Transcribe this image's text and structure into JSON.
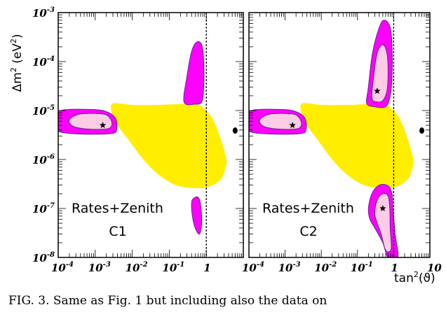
{
  "caption": "FIG. 3. Same as Fig. 1 but including also the data on",
  "chart_data": {
    "type": "contour",
    "x_scale": "log",
    "y_scale": "log",
    "xlim": [
      0.0001,
      10
    ],
    "ylim": [
      1e-08,
      0.001
    ],
    "xlabel": "tan²(ϑ)",
    "ylabel": "Δm² (eV²)",
    "x_tick_labels": [
      {
        "base": "10",
        "exp": "-4",
        "value": 0.0001
      },
      {
        "base": "10",
        "exp": "-3",
        "value": 0.001
      },
      {
        "base": "10",
        "exp": "-2",
        "value": 0.01
      },
      {
        "base": "10",
        "exp": "-1",
        "value": 0.1
      },
      {
        "base": "1",
        "exp": "",
        "value": 1
      },
      {
        "base": "10",
        "exp": "",
        "value": 10
      }
    ],
    "y_tick_labels": [
      {
        "base": "10",
        "exp": "-3",
        "value": 0.001
      },
      {
        "base": "10",
        "exp": "-4",
        "value": 0.0001
      },
      {
        "base": "10",
        "exp": "-5",
        "value": 1e-05
      },
      {
        "base": "10",
        "exp": "-6",
        "value": 1e-06
      },
      {
        "base": "10",
        "exp": "-7",
        "value": 1e-07
      },
      {
        "base": "10",
        "exp": "-8",
        "value": 1e-08
      }
    ],
    "colors": {
      "outer_region": "#ff00ff",
      "inner_region": "#ffcce6",
      "excluded_region": "#ffee00",
      "edge": "#5a2a8a"
    },
    "reference_line_x": 1,
    "panels": [
      {
        "label_line1": "Rates+Zenith",
        "label_line2": "C1",
        "best_fit": [
          {
            "x": 0.0016,
            "y": 5e-06
          }
        ],
        "dot": {
          "x": 6,
          "y": 3.9e-06
        },
        "excluded_region": [
          [
            0.003,
            1.4e-05
          ],
          [
            0.01,
            1.3e-05
          ],
          [
            0.05,
            1.3e-05
          ],
          [
            0.2,
            1.35e-05
          ],
          [
            0.6,
            1.3e-05
          ],
          [
            1,
            1e-05
          ],
          [
            1.6,
            6e-06
          ],
          [
            2.5,
            2.5e-06
          ],
          [
            3.3,
            1.2e-06
          ],
          [
            3.5,
            8e-07
          ],
          [
            2.5,
            4e-07
          ],
          [
            1.2,
            2.8e-07
          ],
          [
            0.5,
            2.6e-07
          ],
          [
            0.15,
            3e-07
          ],
          [
            0.05,
            5e-07
          ],
          [
            0.02,
            1e-06
          ],
          [
            0.008,
            2.5e-06
          ],
          [
            0.004,
            5e-06
          ],
          [
            0.0028,
            9e-06
          ]
        ],
        "outer_regions": [
          [
            [
              9e-05,
              6e-06
            ],
            [
              0.00012,
              1e-05
            ],
            [
              0.0008,
              1.05e-05
            ],
            [
              0.002,
              9.5e-06
            ],
            [
              0.0035,
              7e-06
            ],
            [
              0.0038,
              4.2e-06
            ],
            [
              0.0028,
              3.4e-06
            ],
            [
              0.0005,
              3.3e-06
            ],
            [
              0.00012,
              3.6e-06
            ],
            [
              9e-05,
              4.5e-06
            ]
          ],
          [
            [
              0.25,
              1.5e-05
            ],
            [
              0.3,
              5e-05
            ],
            [
              0.4,
              0.00016
            ],
            [
              0.55,
              0.00025
            ],
            [
              0.75,
              0.00022
            ],
            [
              0.85,
              0.0001
            ],
            [
              0.85,
              3e-05
            ],
            [
              0.75,
              1.5e-05
            ],
            [
              0.5,
              1.35e-05
            ]
          ],
          [
            [
              0.4,
              1.3e-07
            ],
            [
              0.45,
              1.6e-07
            ],
            [
              0.6,
              1.7e-07
            ],
            [
              0.7,
              1.2e-07
            ],
            [
              0.75,
              5e-08
            ],
            [
              0.65,
              3e-08
            ],
            [
              0.5,
              4e-08
            ],
            [
              0.42,
              7e-08
            ]
          ]
        ],
        "inner_regions": [
          [
            [
              0.0002,
              6.5e-06
            ],
            [
              0.0004,
              8.5e-06
            ],
            [
              0.0016,
              8.5e-06
            ],
            [
              0.0025,
              7e-06
            ],
            [
              0.0028,
              5e-06
            ],
            [
              0.002,
              4.2e-06
            ],
            [
              0.0006,
              4.2e-06
            ],
            [
              0.00025,
              4.8e-06
            ]
          ]
        ]
      },
      {
        "label_line1": "Rates+Zenith",
        "label_line2": "C2",
        "best_fit": [
          {
            "x": 0.0016,
            "y": 5e-06
          },
          {
            "x": 0.35,
            "y": 2.5e-05
          },
          {
            "x": 0.5,
            "y": 1e-07
          }
        ],
        "dot": {
          "x": 6,
          "y": 3.9e-06
        },
        "excluded_region": [
          [
            0.003,
            1.4e-05
          ],
          [
            0.01,
            1.3e-05
          ],
          [
            0.05,
            1.3e-05
          ],
          [
            0.2,
            1.35e-05
          ],
          [
            0.6,
            1.3e-05
          ],
          [
            1,
            1e-05
          ],
          [
            1.6,
            6e-06
          ],
          [
            2.5,
            2.5e-06
          ],
          [
            3.3,
            1.2e-06
          ],
          [
            3.5,
            8e-07
          ],
          [
            2.5,
            4e-07
          ],
          [
            1.2,
            2.8e-07
          ],
          [
            0.5,
            2.6e-07
          ],
          [
            0.15,
            3e-07
          ],
          [
            0.05,
            5e-07
          ],
          [
            0.02,
            1e-06
          ],
          [
            0.008,
            2.5e-06
          ],
          [
            0.004,
            5e-06
          ],
          [
            0.0028,
            9e-06
          ]
        ],
        "outer_regions": [
          [
            [
              9e-05,
              6e-06
            ],
            [
              0.00012,
              1e-05
            ],
            [
              0.0008,
              1.05e-05
            ],
            [
              0.002,
              9.5e-06
            ],
            [
              0.0035,
              7e-06
            ],
            [
              0.0038,
              4.2e-06
            ],
            [
              0.0028,
              3.4e-06
            ],
            [
              0.0005,
              3.3e-06
            ],
            [
              0.00012,
              3.6e-06
            ],
            [
              9e-05,
              4.5e-06
            ]
          ],
          [
            [
              0.18,
              1.4e-05
            ],
            [
              0.2,
              3e-05
            ],
            [
              0.26,
              0.00015
            ],
            [
              0.4,
              0.0005
            ],
            [
              0.55,
              0.0007
            ],
            [
              0.8,
              0.0005
            ],
            [
              0.9,
              0.0002
            ],
            [
              0.9,
              5e-05
            ],
            [
              0.8,
              2e-05
            ],
            [
              0.6,
              1.2e-05
            ],
            [
              0.3,
              1.2e-05
            ]
          ],
          [
            [
              0.2,
              1e-07
            ],
            [
              0.25,
              2e-07
            ],
            [
              0.4,
              3e-07
            ],
            [
              0.7,
              2.9e-07
            ],
            [
              0.9,
              2e-07
            ],
            [
              0.95,
              1e-07
            ],
            [
              1.1,
              3e-08
            ],
            [
              1.3,
              1e-08
            ],
            [
              0.7,
              1e-08
            ],
            [
              0.5,
              2e-08
            ],
            [
              0.3,
              4e-08
            ],
            [
              0.22,
              6e-08
            ]
          ]
        ],
        "inner_regions": [
          [
            [
              0.0002,
              6.5e-06
            ],
            [
              0.0004,
              8.5e-06
            ],
            [
              0.0016,
              8.5e-06
            ],
            [
              0.0025,
              7e-06
            ],
            [
              0.0028,
              5e-06
            ],
            [
              0.002,
              4.2e-06
            ],
            [
              0.0006,
              4.2e-06
            ],
            [
              0.00025,
              4.8e-06
            ]
          ],
          [
            [
              0.25,
              1.8e-05
            ],
            [
              0.28,
              5e-05
            ],
            [
              0.35,
              0.00015
            ],
            [
              0.5,
              0.00022
            ],
            [
              0.65,
              0.00015
            ],
            [
              0.7,
              6e-05
            ],
            [
              0.65,
              2.5e-05
            ],
            [
              0.5,
              1.6e-05
            ],
            [
              0.35,
              1.5e-05
            ]
          ],
          [
            [
              0.3,
              8e-08
            ],
            [
              0.35,
              1.5e-07
            ],
            [
              0.5,
              2e-07
            ],
            [
              0.7,
              1.8e-07
            ],
            [
              0.78,
              1e-07
            ],
            [
              0.8,
              4e-08
            ],
            [
              0.85,
              1.5e-08
            ],
            [
              0.6,
              1.4e-08
            ],
            [
              0.45,
              3e-08
            ],
            [
              0.35,
              5e-08
            ]
          ]
        ]
      }
    ]
  }
}
